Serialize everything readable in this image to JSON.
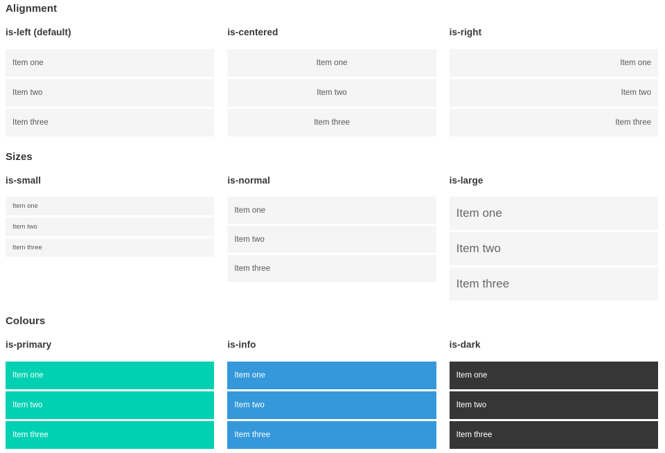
{
  "sections": [
    {
      "title": "Alignment",
      "columns": [
        {
          "subtitle": "is-left (default)",
          "variant": "left",
          "items": [
            "Item one",
            "Item two",
            "Item three"
          ]
        },
        {
          "subtitle": "is-centered",
          "variant": "centered",
          "items": [
            "Item one",
            "Item two",
            "Item three"
          ]
        },
        {
          "subtitle": "is-right",
          "variant": "right",
          "items": [
            "Item one",
            "Item two",
            "Item three"
          ]
        }
      ]
    },
    {
      "title": "Sizes",
      "columns": [
        {
          "subtitle": "is-small",
          "variant": "small",
          "items": [
            "Item one",
            "Item two",
            "Item three"
          ]
        },
        {
          "subtitle": "is-normal",
          "variant": "normal",
          "items": [
            "Item one",
            "Item two",
            "Item three"
          ]
        },
        {
          "subtitle": "is-large",
          "variant": "large",
          "items": [
            "Item one",
            "Item two",
            "Item three"
          ]
        }
      ]
    },
    {
      "title": "Colours",
      "columns": [
        {
          "subtitle": "is-primary",
          "variant": "primary",
          "items": [
            "Item one",
            "Item two",
            "Item three"
          ]
        },
        {
          "subtitle": "is-info",
          "variant": "info",
          "items": [
            "Item one",
            "Item two",
            "Item three"
          ]
        },
        {
          "subtitle": "is-dark",
          "variant": "dark",
          "items": [
            "Item one",
            "Item two",
            "Item three"
          ]
        }
      ]
    }
  ],
  "colors": {
    "primary": "#00d1b2",
    "info": "#3498db",
    "dark": "#363636",
    "item_background": "#f5f5f5",
    "item_text": "#585858",
    "heading_text": "#363636",
    "text_on_colour": "#ffffff"
  }
}
